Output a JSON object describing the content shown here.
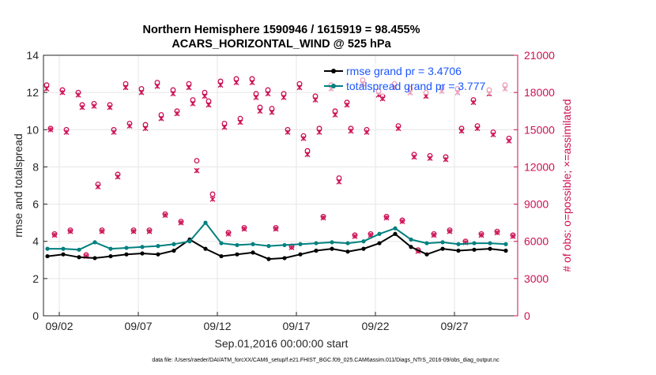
{
  "chart_data": {
    "type": "line",
    "title_line1": "Northern Hemisphere 1590946 / 1615919 = 98.455%",
    "title_line2": "ACARS_HORIZONTAL_WIND @ 525 hPa",
    "xlabel": "Sep.01,2016 00:00:00 start",
    "ylabel_left": "rmse and totalspread",
    "ylabel_right": "# of obs: o=possible; ×=assimilated",
    "footer": "data file: /Users/raeder/DAI/ATM_forcXX/CAM6_setup/f.e21.FHIST_BGC.f09_025.CAM6assim.011/Diags_NTrS_2016-09/obs_diag_output.nc",
    "xlim": [
      1,
      31
    ],
    "ylim_left": [
      0,
      14
    ],
    "ylim_right": [
      0,
      21000
    ],
    "x_ticks": [
      2,
      7,
      12,
      17,
      22,
      27
    ],
    "x_tick_labels": [
      "09/02",
      "09/07",
      "09/12",
      "09/17",
      "09/22",
      "09/27"
    ],
    "y_left_ticks": [
      0,
      2,
      4,
      6,
      8,
      10,
      12,
      14
    ],
    "y_left_tick_labels": [
      "0",
      "2",
      "4",
      "6",
      "8",
      "10",
      "12",
      "14"
    ],
    "y_right_ticks": [
      0,
      3000,
      6000,
      9000,
      12000,
      15000,
      18000,
      21000
    ],
    "y_right_tick_labels": [
      "0",
      "3000",
      "6000",
      "9000",
      "12000",
      "15000",
      "18000",
      "21000"
    ],
    "grid": true,
    "legend_position": "top-right",
    "colors": {
      "rmse": "#000000",
      "spread": "#00807f",
      "obs": "#cc1155",
      "axis_right": "#cc1155",
      "legend_text": "#1a56ff"
    },
    "legend": [
      {
        "name": "rmse grand pr = 3.4706",
        "series": "rmse"
      },
      {
        "name": "totalspread grand pr = 3.777",
        "series": "spread"
      }
    ],
    "series": [
      {
        "name": "rmse",
        "x": [
          1.25,
          2.25,
          3.25,
          4.25,
          5.25,
          6.25,
          7.25,
          8.25,
          9.25,
          10.25,
          11.25,
          12.25,
          13.25,
          14.25,
          15.25,
          16.25,
          17.25,
          18.25,
          19.25,
          20.25,
          21.25,
          22.25,
          23.25,
          24.25,
          25.25,
          26.25,
          27.25,
          28.25,
          29.25,
          30.25
        ],
        "values": [
          3.2,
          3.3,
          3.15,
          3.1,
          3.2,
          3.3,
          3.35,
          3.3,
          3.5,
          4.1,
          3.6,
          3.2,
          3.3,
          3.4,
          3.05,
          3.1,
          3.3,
          3.5,
          3.6,
          3.45,
          3.6,
          3.9,
          4.4,
          3.7,
          3.3,
          3.6,
          3.5,
          3.55,
          3.6,
          3.5
        ]
      },
      {
        "name": "totalspread",
        "x": [
          1.25,
          2.25,
          3.25,
          4.25,
          5.25,
          6.25,
          7.25,
          8.25,
          9.25,
          10.25,
          11.25,
          12.25,
          13.25,
          14.25,
          15.25,
          16.25,
          17.25,
          18.25,
          19.25,
          20.25,
          21.25,
          22.25,
          23.25,
          24.25,
          25.25,
          26.25,
          27.25,
          28.25,
          29.25,
          30.25
        ],
        "values": [
          3.6,
          3.6,
          3.55,
          3.95,
          3.6,
          3.65,
          3.7,
          3.75,
          3.85,
          4.0,
          5.0,
          3.9,
          3.8,
          3.85,
          3.75,
          3.8,
          3.85,
          3.9,
          3.95,
          3.9,
          4.0,
          4.4,
          4.7,
          4.1,
          3.9,
          3.95,
          3.85,
          3.9,
          3.9,
          3.85
        ]
      }
    ],
    "obs_series": [
      {
        "name": "possible",
        "x": [
          1.2,
          1.45,
          1.7,
          2.2,
          2.45,
          2.7,
          3.2,
          3.45,
          3.7,
          4.2,
          4.45,
          4.7,
          5.2,
          5.45,
          5.7,
          6.2,
          6.45,
          6.7,
          7.2,
          7.45,
          7.7,
          8.2,
          8.45,
          8.7,
          9.2,
          9.45,
          9.7,
          10.2,
          10.45,
          10.7,
          11.2,
          11.45,
          11.7,
          12.2,
          12.45,
          12.7,
          13.2,
          13.45,
          13.7,
          14.2,
          14.45,
          14.7,
          15.2,
          15.45,
          15.7,
          16.2,
          16.45,
          16.7,
          17.2,
          17.45,
          17.7,
          18.2,
          18.45,
          18.7,
          19.2,
          19.45,
          19.7,
          20.2,
          20.45,
          20.7,
          21.2,
          21.45,
          21.7,
          22.2,
          22.45,
          22.7,
          23.2,
          23.45,
          23.7,
          24.2,
          24.45,
          24.7,
          25.2,
          25.45,
          25.7,
          26.2,
          26.45,
          26.7,
          27.2,
          27.45,
          27.7,
          28.2,
          28.45,
          28.7,
          29.2,
          29.45,
          29.7,
          30.2,
          30.45,
          30.7
        ],
        "values": [
          18600,
          15100,
          6600,
          18200,
          15000,
          6900,
          18000,
          17000,
          4900,
          17100,
          10600,
          6900,
          17000,
          15000,
          11400,
          18700,
          15500,
          6900,
          18300,
          15400,
          6900,
          18800,
          16200,
          8200,
          18200,
          16500,
          7600,
          18700,
          17400,
          12500,
          18000,
          17300,
          9800,
          18900,
          15500,
          6700,
          19100,
          15900,
          7100,
          19100,
          17900,
          16800,
          18200,
          16700,
          7100,
          17900,
          15000,
          5600,
          18700,
          14500,
          13300,
          17700,
          15100,
          8000,
          18600,
          16500,
          11100,
          17200,
          15100,
          6500,
          19000,
          15000,
          6600,
          18100,
          17700,
          8000,
          18700,
          15300,
          7700,
          18300,
          13000,
          5300,
          18000,
          12900,
          6600,
          18400,
          12800,
          6900,
          18300,
          15100,
          6000,
          17400,
          15300,
          6600,
          18200,
          14800,
          6800,
          18600,
          14300,
          6500
        ]
      },
      {
        "name": "assimilated",
        "x": [
          1.2,
          1.45,
          1.7,
          2.2,
          2.45,
          2.7,
          3.2,
          3.45,
          3.7,
          4.2,
          4.45,
          4.7,
          5.2,
          5.45,
          5.7,
          6.2,
          6.45,
          6.7,
          7.2,
          7.45,
          7.7,
          8.2,
          8.45,
          8.7,
          9.2,
          9.45,
          9.7,
          10.2,
          10.45,
          10.7,
          11.2,
          11.45,
          11.7,
          12.2,
          12.45,
          12.7,
          13.2,
          13.45,
          13.7,
          14.2,
          14.45,
          14.7,
          15.2,
          15.45,
          15.7,
          16.2,
          16.45,
          16.7,
          17.2,
          17.45,
          17.7,
          18.2,
          18.45,
          18.7,
          19.2,
          19.45,
          19.7,
          20.2,
          20.45,
          20.7,
          21.2,
          21.45,
          21.7,
          22.2,
          22.45,
          22.7,
          23.2,
          23.45,
          23.7,
          24.2,
          24.45,
          24.7,
          25.2,
          25.45,
          25.7,
          26.2,
          26.45,
          26.7,
          27.2,
          27.45,
          27.7,
          28.2,
          28.45,
          28.7,
          29.2,
          29.45,
          29.7,
          30.2,
          30.45,
          30.7
        ],
        "values": [
          18300,
          15000,
          6500,
          18000,
          14800,
          6800,
          17800,
          16800,
          4800,
          16900,
          10400,
          6800,
          16800,
          14800,
          11200,
          18400,
          15300,
          6800,
          18000,
          15100,
          6800,
          18500,
          15900,
          8100,
          17900,
          16300,
          7500,
          18400,
          17100,
          11700,
          17700,
          17000,
          9400,
          18600,
          15200,
          6600,
          18800,
          15600,
          7000,
          18800,
          17600,
          16500,
          17900,
          16400,
          7000,
          17600,
          14800,
          5500,
          18400,
          14300,
          13000,
          17400,
          14800,
          7900,
          18300,
          16200,
          10800,
          17000,
          14900,
          6400,
          18700,
          14800,
          6500,
          17800,
          17500,
          7900,
          18400,
          15100,
          7600,
          18000,
          12800,
          5200,
          17700,
          12700,
          6500,
          18100,
          12600,
          6800,
          18000,
          14900,
          5900,
          17200,
          15100,
          6500,
          17900,
          14600,
          6700,
          18300,
          14100,
          6400
        ]
      }
    ]
  }
}
